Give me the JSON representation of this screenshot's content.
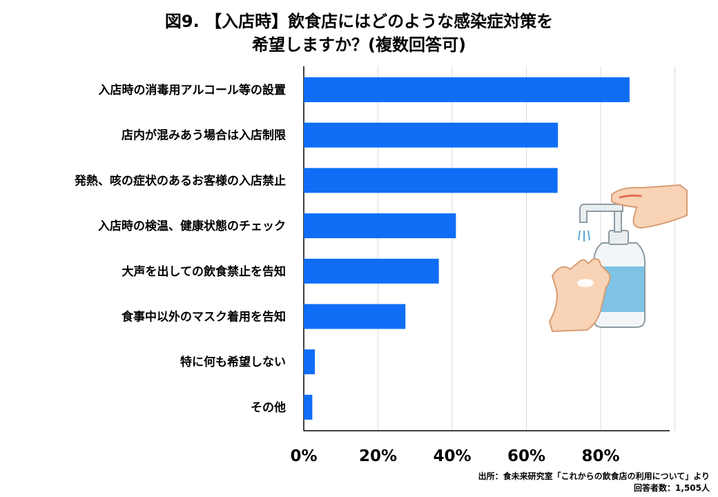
{
  "title": {
    "line1": "図9. 【入店時】飲食店にはどのような感染症対策を",
    "line2": "希望しますか？(複数回答可)"
  },
  "chart_data": {
    "type": "bar",
    "orientation": "horizontal",
    "categories": [
      "入店時の消毒用アルコール等の設置",
      "店内が混みあう場合は入店制限",
      "発熱、咳の症状のあるお客様の入店禁止",
      "入店時の検温、健康状態のチェック",
      "大声を出しての飲食禁止を告知",
      "食事中以外のマスク着用を告知",
      "特に何も希望しない",
      "その他"
    ],
    "values": [
      87.8,
      68.5,
      68.4,
      41.0,
      36.4,
      27.4,
      3.0,
      2.3
    ],
    "xlim": [
      0,
      100
    ],
    "xticks": [
      0,
      20,
      40,
      60,
      80
    ],
    "xtick_labels": [
      "0%",
      "20%",
      "40%",
      "60%",
      "80%"
    ],
    "grid": "vertical",
    "bar_color": "#0f6ef5"
  },
  "illustration": {
    "icon": "hand-sanitizer-dispenser-icon"
  },
  "source": {
    "line1": "出所：食未来研究室「これからの飲食店の利用について」より",
    "line2": "回答者数：1,505人"
  }
}
